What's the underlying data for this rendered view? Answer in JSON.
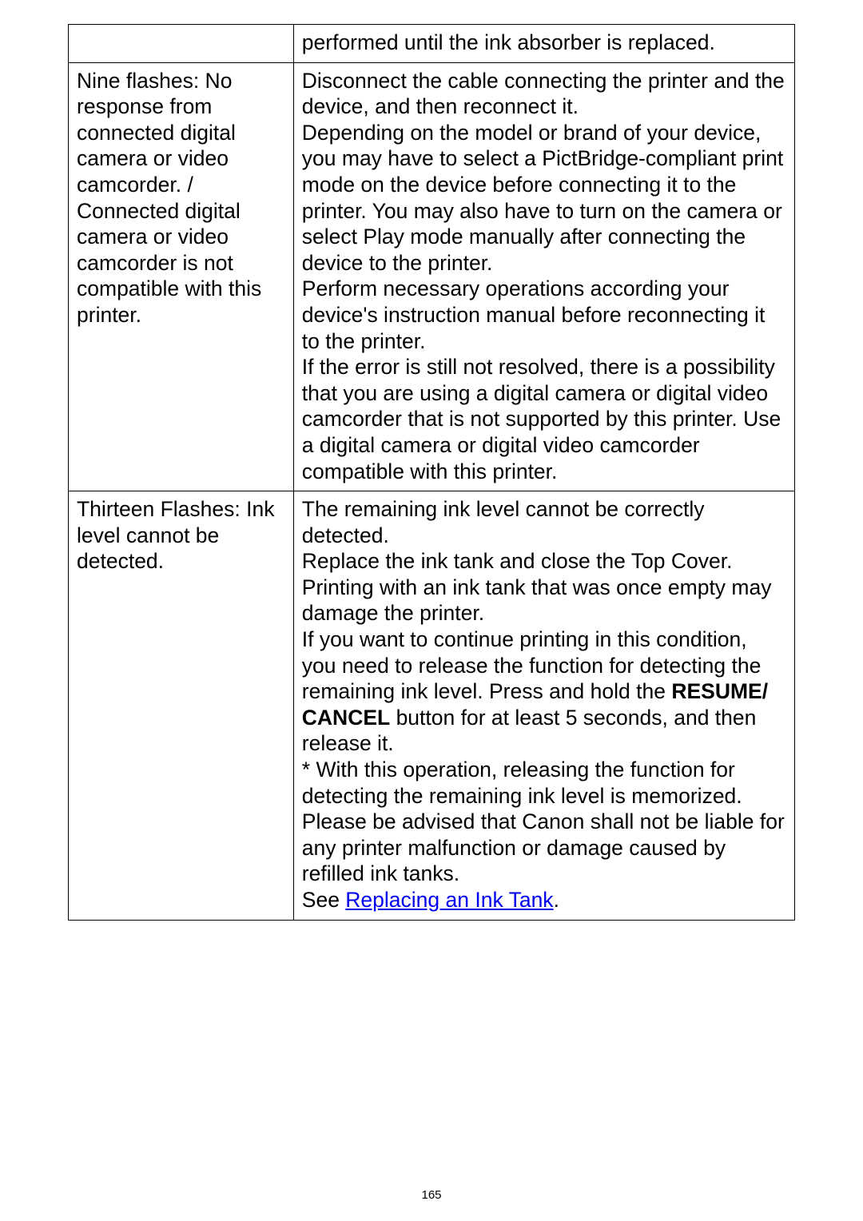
{
  "rows": [
    {
      "left": "",
      "right_plain": "performed until the ink absorber is replaced."
    },
    {
      "left": "Nine flashes: No response from connected digital camera or video camcorder. / Connected digital camera or video camcorder is not compatible with this printer.",
      "right_plain": "Disconnect the cable connecting the printer and the device, and then reconnect it.\nDepending on the model or brand of your device, you may have to select a PictBridge-compliant print mode on the device before connecting it to the printer. You may also have to turn on the camera or select Play mode manually after connecting the device to the printer.\nPerform necessary operations according your device's instruction manual before reconnecting it to the printer.\nIf the error is still not resolved, there is a possibility that you are using a digital camera or digital video camcorder that is not supported by this printer. Use a digital camera or digital video camcorder compatible with this printer."
    },
    {
      "left": "Thirteen Flashes: Ink level cannot be detected.",
      "right_pre_bold1": "The remaining ink level cannot be correctly detected.\nReplace the ink tank and close the Top Cover.\nPrinting with an ink tank that was once empty may damage the printer.\nIf you want to continue printing in this condition, you need to release the function for detecting the remaining ink level. Press and hold the ",
      "bold1": "RESUME/ CANCEL",
      "right_post_bold1": " button for at least 5 seconds, and then release it.\n* With this operation, releasing the function for detecting the remaining ink level is memorized. Please be advised that Canon shall not be liable for any printer malfunction or damage caused by refilled ink tanks.\nSee ",
      "link_text": "Replacing an Ink Tank",
      "right_tail": "."
    }
  ],
  "page_number": "165"
}
